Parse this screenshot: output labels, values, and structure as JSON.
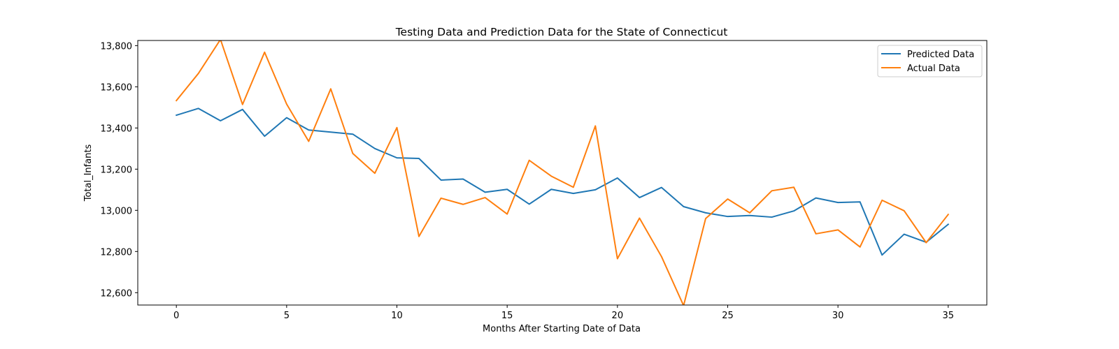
{
  "chart_data": {
    "type": "line",
    "title": "Testing Data and Prediction Data for the State of Connecticut",
    "xlabel": "Months After Starting Date of Data",
    "ylabel": "Total_Infants",
    "xlim": [
      -1.75,
      36.75
    ],
    "ylim": [
      12540,
      13825
    ],
    "x_ticks": [
      0,
      5,
      10,
      15,
      20,
      25,
      30,
      35
    ],
    "x_tick_labels": [
      "0",
      "5",
      "10",
      "15",
      "20",
      "25",
      "30",
      "35"
    ],
    "y_ticks": [
      12600,
      12800,
      13000,
      13200,
      13400,
      13600,
      13800
    ],
    "y_tick_labels": [
      "12,600",
      "12,800",
      "13,000",
      "13,200",
      "13,400",
      "13,600",
      "13,800"
    ],
    "grid": false,
    "legend_position": "top-right",
    "x": [
      0,
      1,
      2,
      3,
      4,
      5,
      6,
      7,
      8,
      9,
      10,
      11,
      12,
      13,
      14,
      15,
      16,
      17,
      18,
      19,
      20,
      21,
      22,
      23,
      24,
      25,
      26,
      27,
      28,
      29,
      30,
      31,
      32,
      33,
      34,
      35
    ],
    "series": [
      {
        "name": "Predicted Data",
        "color": "#1f77b4",
        "values": [
          13462,
          13495,
          13435,
          13490,
          13360,
          13450,
          13390,
          13380,
          13370,
          13300,
          13255,
          13252,
          13147,
          13152,
          13088,
          13102,
          13030,
          13102,
          13082,
          13100,
          13157,
          13062,
          13111,
          13018,
          12988,
          12970,
          12975,
          12967,
          12997,
          13060,
          13038,
          13041,
          12783,
          12884,
          12845,
          12932
        ]
      },
      {
        "name": "Actual Data",
        "color": "#ff7f0e",
        "values": [
          13533,
          13665,
          13830,
          13514,
          13768,
          13516,
          13335,
          13590,
          13276,
          13180,
          13402,
          12873,
          13059,
          13029,
          13062,
          12982,
          13243,
          13166,
          13112,
          13410,
          12765,
          12962,
          12775,
          12537,
          12960,
          13055,
          12988,
          13095,
          13112,
          12886,
          12905,
          12822,
          13049,
          12998,
          12843,
          12980
        ]
      }
    ]
  }
}
